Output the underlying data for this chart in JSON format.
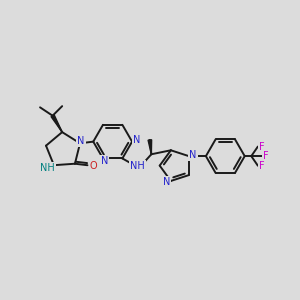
{
  "bg_color": "#dcdcdc",
  "bond_color": "#1a1a1a",
  "N_color": "#2222cc",
  "O_color": "#cc2222",
  "F_color": "#cc00cc",
  "NH_color": "#008080",
  "figsize": [
    3.0,
    3.0
  ],
  "dpi": 100,
  "lw": 1.4,
  "fs": 7.0,
  "xlim": [
    0,
    10
  ],
  "ylim": [
    0,
    10
  ]
}
